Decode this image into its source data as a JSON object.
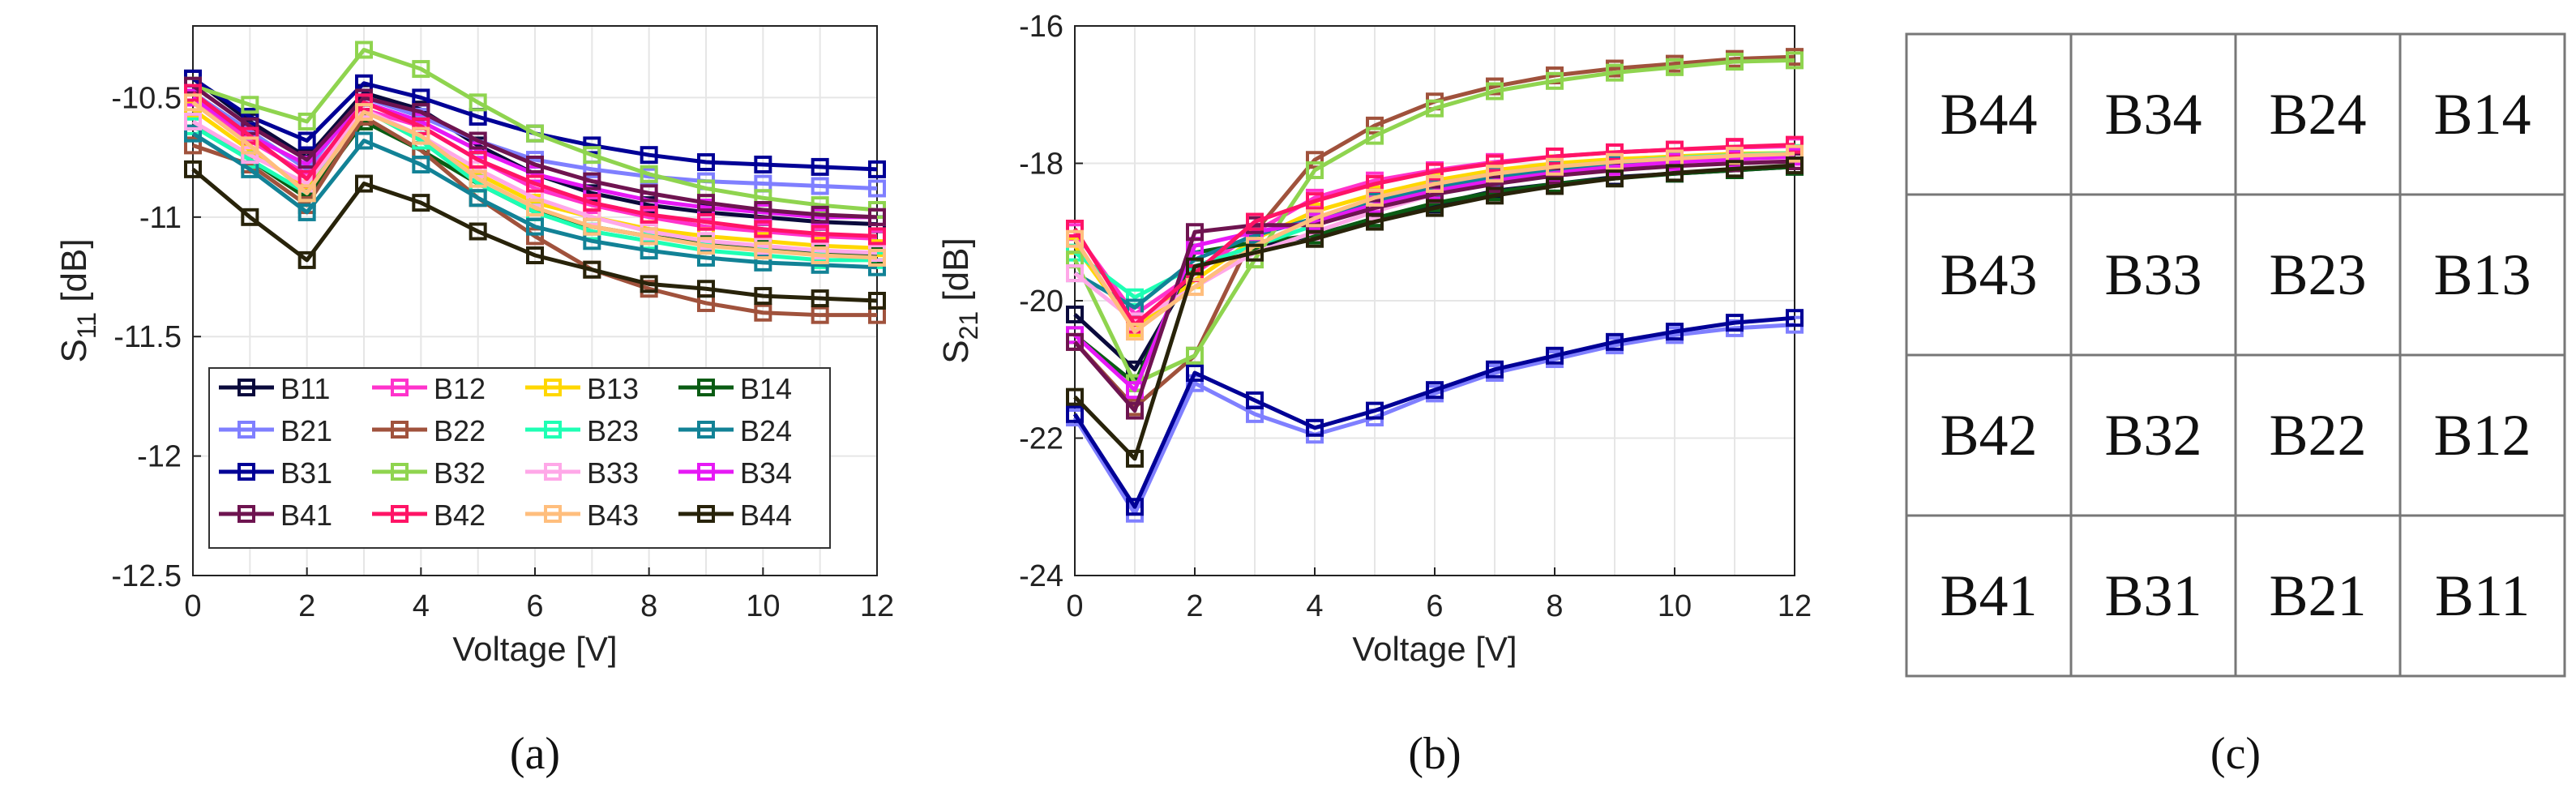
{
  "colors": {
    "B11": "#0a0a3c",
    "B12": "#ff33cc",
    "B13": "#ffd700",
    "B14": "#0a5c14",
    "B21": "#7f7fff",
    "B22": "#a0523c",
    "B23": "#1effb4",
    "B24": "#128296",
    "B31": "#000096",
    "B32": "#8fd44f",
    "B33": "#ffa8e8",
    "B34": "#e619f5",
    "B41": "#6e1450",
    "B42": "#ff1466",
    "B43": "#ffbe7d",
    "B44": "#28230a"
  },
  "chart_data": [
    {
      "type": "line",
      "panel_label": "(a)",
      "xlabel": "Voltage [V]",
      "ylabel_main": "S",
      "ylabel_sub": "11",
      "ylabel_unit": "[dB]",
      "grid": true,
      "xlim": [
        0,
        12
      ],
      "ylim": [
        -12.5,
        -10.2
      ],
      "xticks": [
        0,
        2,
        4,
        6,
        8,
        10,
        12
      ],
      "xtick_labels": [
        "0",
        "2",
        "4",
        "6",
        "8",
        "10",
        "12"
      ],
      "yticks": [
        -10.5,
        -11,
        -11.5,
        -12,
        -12.5
      ],
      "ytick_labels": [
        "-10.5",
        "-11",
        "-11.5",
        "-12",
        "-12.5"
      ],
      "legend_position": "bottom-left",
      "legend_columns": 4,
      "x": [
        0,
        1,
        2,
        3,
        4,
        5,
        6,
        7,
        8,
        9,
        10,
        11,
        12
      ],
      "series": [
        {
          "name": "B11",
          "values": [
            -10.42,
            -10.6,
            -10.75,
            -10.48,
            -10.55,
            -10.7,
            -10.82,
            -10.9,
            -10.95,
            -10.98,
            -11.0,
            -11.02,
            -11.03
          ]
        },
        {
          "name": "B12",
          "values": [
            -10.5,
            -10.68,
            -10.82,
            -10.55,
            -10.62,
            -10.76,
            -10.88,
            -10.95,
            -11.0,
            -11.04,
            -11.06,
            -11.08,
            -11.09
          ]
        },
        {
          "name": "B13",
          "values": [
            -10.55,
            -10.72,
            -10.88,
            -10.55,
            -10.68,
            -10.82,
            -10.94,
            -11.0,
            -11.05,
            -11.08,
            -11.1,
            -11.12,
            -11.13
          ]
        },
        {
          "name": "B14",
          "values": [
            -10.6,
            -10.76,
            -10.92,
            -10.6,
            -10.72,
            -10.86,
            -10.98,
            -11.04,
            -11.08,
            -11.11,
            -11.13,
            -11.15,
            -11.16
          ]
        },
        {
          "name": "B21",
          "values": [
            -10.48,
            -10.64,
            -10.8,
            -10.5,
            -10.58,
            -10.68,
            -10.76,
            -10.8,
            -10.83,
            -10.85,
            -10.86,
            -10.87,
            -10.88
          ]
        },
        {
          "name": "B22",
          "values": [
            -10.7,
            -10.78,
            -10.95,
            -10.58,
            -10.72,
            -10.92,
            -11.08,
            -11.22,
            -11.3,
            -11.36,
            -11.4,
            -11.41,
            -11.41
          ]
        },
        {
          "name": "B23",
          "values": [
            -10.62,
            -10.76,
            -10.9,
            -10.55,
            -10.68,
            -10.86,
            -10.98,
            -11.06,
            -11.1,
            -11.14,
            -11.16,
            -11.18,
            -11.18
          ]
        },
        {
          "name": "B24",
          "values": [
            -10.65,
            -10.8,
            -10.98,
            -10.68,
            -10.78,
            -10.92,
            -11.04,
            -11.1,
            -11.14,
            -11.17,
            -11.19,
            -11.2,
            -11.21
          ]
        },
        {
          "name": "B31",
          "values": [
            -10.42,
            -10.58,
            -10.68,
            -10.44,
            -10.5,
            -10.58,
            -10.65,
            -10.7,
            -10.74,
            -10.77,
            -10.78,
            -10.79,
            -10.8
          ]
        },
        {
          "name": "B32",
          "values": [
            -10.45,
            -10.53,
            -10.6,
            -10.3,
            -10.38,
            -10.52,
            -10.65,
            -10.74,
            -10.82,
            -10.88,
            -10.92,
            -10.95,
            -10.97
          ]
        },
        {
          "name": "B33",
          "values": [
            -10.6,
            -10.74,
            -10.86,
            -10.55,
            -10.66,
            -10.8,
            -10.92,
            -11.0,
            -11.06,
            -11.1,
            -11.12,
            -11.14,
            -11.15
          ]
        },
        {
          "name": "B34",
          "values": [
            -10.5,
            -10.66,
            -10.78,
            -10.52,
            -10.6,
            -10.72,
            -10.82,
            -10.88,
            -10.93,
            -10.96,
            -10.98,
            -11.0,
            -11.0
          ]
        },
        {
          "name": "B41",
          "values": [
            -10.45,
            -10.62,
            -10.76,
            -10.5,
            -10.56,
            -10.68,
            -10.78,
            -10.85,
            -10.9,
            -10.94,
            -10.97,
            -10.99,
            -11.0
          ]
        },
        {
          "name": "B42",
          "values": [
            -10.48,
            -10.66,
            -10.84,
            -10.52,
            -10.62,
            -10.76,
            -10.86,
            -10.94,
            -10.99,
            -11.02,
            -11.05,
            -11.07,
            -11.08
          ]
        },
        {
          "name": "B43",
          "values": [
            -10.52,
            -10.7,
            -10.9,
            -10.56,
            -10.66,
            -10.84,
            -10.96,
            -11.04,
            -11.08,
            -11.12,
            -11.14,
            -11.16,
            -11.17
          ]
        },
        {
          "name": "B44",
          "values": [
            -10.8,
            -11.0,
            -11.18,
            -10.86,
            -10.94,
            -11.06,
            -11.16,
            -11.22,
            -11.28,
            -11.3,
            -11.33,
            -11.34,
            -11.35
          ]
        }
      ]
    },
    {
      "type": "line",
      "panel_label": "(b)",
      "xlabel": "Voltage [V]",
      "ylabel_main": "S",
      "ylabel_sub": "21",
      "ylabel_unit": "[dB]",
      "grid": true,
      "xlim": [
        0,
        12
      ],
      "ylim": [
        -24,
        -16
      ],
      "xticks": [
        0,
        2,
        4,
        6,
        8,
        10,
        12
      ],
      "xtick_labels": [
        "0",
        "2",
        "4",
        "6",
        "8",
        "10",
        "12"
      ],
      "yticks": [
        -16,
        -18,
        -20,
        -22,
        -24
      ],
      "ytick_labels": [
        "-16",
        "-18",
        "-20",
        "-22",
        "-24"
      ],
      "x": [
        0,
        1,
        2,
        3,
        4,
        5,
        6,
        7,
        8,
        9,
        10,
        11,
        12
      ],
      "series": [
        {
          "name": "B11",
          "values": [
            -20.2,
            -21.0,
            -19.5,
            -19.2,
            -19.05,
            -18.8,
            -18.6,
            -18.4,
            -18.3,
            -18.2,
            -18.15,
            -18.1,
            -18.05
          ]
        },
        {
          "name": "B12",
          "values": [
            -19.0,
            -20.2,
            -19.6,
            -19.0,
            -18.5,
            -18.25,
            -18.1,
            -17.98,
            -17.9,
            -17.84,
            -17.8,
            -17.77,
            -17.75
          ]
        },
        {
          "name": "B13",
          "values": [
            -19.2,
            -20.4,
            -19.7,
            -19.1,
            -18.7,
            -18.45,
            -18.25,
            -18.1,
            -18.0,
            -17.94,
            -17.9,
            -17.86,
            -17.85
          ]
        },
        {
          "name": "B14",
          "values": [
            -20.5,
            -21.2,
            -19.3,
            -19.15,
            -19.05,
            -18.8,
            -18.58,
            -18.42,
            -18.3,
            -18.22,
            -18.15,
            -18.1,
            -18.05
          ]
        },
        {
          "name": "B21",
          "values": [
            -21.7,
            -23.1,
            -21.2,
            -21.65,
            -21.95,
            -21.7,
            -21.35,
            -21.05,
            -20.85,
            -20.65,
            -20.5,
            -20.4,
            -20.35
          ]
        },
        {
          "name": "B22",
          "values": [
            -20.6,
            -21.55,
            -20.8,
            -19.0,
            -17.95,
            -17.45,
            -17.1,
            -16.88,
            -16.72,
            -16.62,
            -16.55,
            -16.48,
            -16.45
          ]
        },
        {
          "name": "B23",
          "values": [
            -19.3,
            -19.95,
            -19.5,
            -19.2,
            -18.9,
            -18.55,
            -18.3,
            -18.15,
            -18.05,
            -17.98,
            -17.92,
            -17.88,
            -17.85
          ]
        },
        {
          "name": "B24",
          "values": [
            -19.6,
            -20.1,
            -19.4,
            -19.05,
            -18.8,
            -18.55,
            -18.35,
            -18.2,
            -18.1,
            -18.02,
            -17.96,
            -17.92,
            -17.9
          ]
        },
        {
          "name": "B31",
          "values": [
            -21.65,
            -23.0,
            -21.05,
            -21.45,
            -21.85,
            -21.6,
            -21.3,
            -21.0,
            -20.8,
            -20.6,
            -20.45,
            -20.32,
            -20.25
          ]
        },
        {
          "name": "B32",
          "values": [
            -19.4,
            -21.2,
            -20.8,
            -19.4,
            -18.1,
            -17.6,
            -17.2,
            -16.95,
            -16.8,
            -16.68,
            -16.6,
            -16.52,
            -16.5
          ]
        },
        {
          "name": "B33",
          "values": [
            -19.6,
            -20.3,
            -19.8,
            -19.3,
            -19.0,
            -18.7,
            -18.45,
            -18.28,
            -18.15,
            -18.06,
            -18.0,
            -17.95,
            -17.92
          ]
        },
        {
          "name": "B34",
          "values": [
            -20.5,
            -21.3,
            -19.2,
            -19.0,
            -18.85,
            -18.6,
            -18.4,
            -18.25,
            -18.14,
            -18.05,
            -17.98,
            -17.94,
            -17.9
          ]
        },
        {
          "name": "B41",
          "values": [
            -20.6,
            -21.6,
            -19.0,
            -18.9,
            -18.9,
            -18.65,
            -18.45,
            -18.3,
            -18.18,
            -18.1,
            -18.04,
            -18.0,
            -17.97
          ]
        },
        {
          "name": "B42",
          "values": [
            -18.95,
            -20.35,
            -19.6,
            -18.85,
            -18.55,
            -18.3,
            -18.12,
            -18.0,
            -17.9,
            -17.84,
            -17.8,
            -17.76,
            -17.73
          ]
        },
        {
          "name": "B43",
          "values": [
            -19.1,
            -20.45,
            -19.8,
            -19.2,
            -18.8,
            -18.5,
            -18.3,
            -18.15,
            -18.05,
            -17.98,
            -17.93,
            -17.89,
            -17.86
          ]
        },
        {
          "name": "B44",
          "values": [
            -21.4,
            -22.3,
            -19.5,
            -19.3,
            -19.1,
            -18.85,
            -18.65,
            -18.47,
            -18.33,
            -18.22,
            -18.14,
            -18.08,
            -18.03
          ]
        }
      ]
    }
  ],
  "panel_c": {
    "label": "(c)",
    "rows": [
      [
        "B44",
        "B34",
        "B24",
        "B14"
      ],
      [
        "B43",
        "B33",
        "B23",
        "B13"
      ],
      [
        "B42",
        "B32",
        "B22",
        "B12"
      ],
      [
        "B41",
        "B31",
        "B21",
        "B11"
      ]
    ]
  }
}
